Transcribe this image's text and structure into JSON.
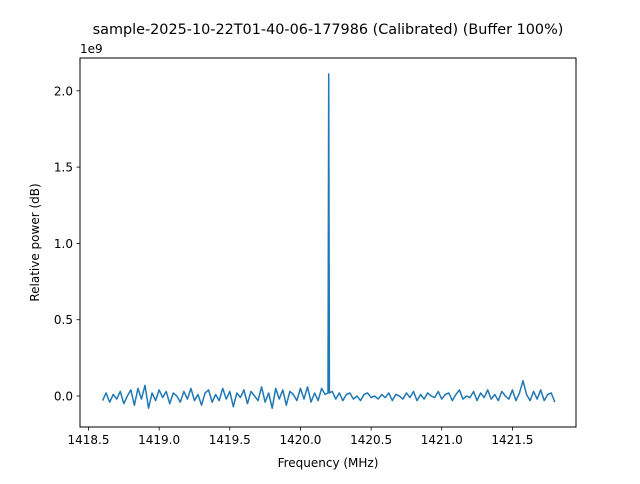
{
  "chart_data": {
    "type": "line",
    "title": "sample-2025-10-22T01-40-06-177986 (Calibrated) (Buffer 100%)",
    "xlabel": "Frequency (MHz)",
    "ylabel": "Relative power (dB)",
    "y_offset_label": "1e9",
    "y_multiplier": 1000000000,
    "xlim": [
      1418.44,
      1421.95
    ],
    "ylim": [
      -0.203,
      2.215
    ],
    "xticks": [
      1418.5,
      1419.0,
      1419.5,
      1420.0,
      1420.5,
      1421.0,
      1421.5
    ],
    "xtick_labels": [
      "1418.5",
      "1419.0",
      "1419.5",
      "1420.0",
      "1420.5",
      "1421.0",
      "1421.5"
    ],
    "yticks": [
      0.0,
      0.5,
      1.0,
      1.5,
      2.0
    ],
    "ytick_labels": [
      "0.0",
      "0.5",
      "1.0",
      "1.5",
      "2.0"
    ],
    "grid": false,
    "line_color": "#1f77b4",
    "series": [
      {
        "x": [
          1418.6,
          1418.625,
          1418.65,
          1418.675,
          1418.7,
          1418.725,
          1418.75,
          1418.775,
          1418.8,
          1418.825,
          1418.85,
          1418.875,
          1418.9,
          1418.925,
          1418.95,
          1418.975,
          1419.0,
          1419.025,
          1419.05,
          1419.075,
          1419.1,
          1419.125,
          1419.15,
          1419.175,
          1419.2,
          1419.225,
          1419.25,
          1419.275,
          1419.3,
          1419.325,
          1419.35,
          1419.375,
          1419.4,
          1419.425,
          1419.45,
          1419.475,
          1419.5,
          1419.525,
          1419.55,
          1419.575,
          1419.6,
          1419.625,
          1419.65,
          1419.675,
          1419.7,
          1419.725,
          1419.75,
          1419.775,
          1419.8,
          1419.825,
          1419.85,
          1419.875,
          1419.9,
          1419.925,
          1419.95,
          1419.975,
          1420.0,
          1420.025,
          1420.05,
          1420.075,
          1420.1,
          1420.125,
          1420.15,
          1420.175,
          1420.195,
          1420.2,
          1420.205,
          1420.225,
          1420.25,
          1420.275,
          1420.3,
          1420.325,
          1420.35,
          1420.375,
          1420.4,
          1420.425,
          1420.45,
          1420.475,
          1420.5,
          1420.525,
          1420.55,
          1420.575,
          1420.6,
          1420.625,
          1420.65,
          1420.675,
          1420.7,
          1420.725,
          1420.75,
          1420.775,
          1420.8,
          1420.825,
          1420.85,
          1420.875,
          1420.9,
          1420.925,
          1420.95,
          1420.975,
          1421.0,
          1421.025,
          1421.05,
          1421.075,
          1421.1,
          1421.125,
          1421.15,
          1421.175,
          1421.2,
          1421.225,
          1421.25,
          1421.275,
          1421.3,
          1421.325,
          1421.35,
          1421.375,
          1421.4,
          1421.425,
          1421.45,
          1421.475,
          1421.5,
          1421.525,
          1421.55,
          1421.575,
          1421.6,
          1421.625,
          1421.65,
          1421.675,
          1421.7,
          1421.725,
          1421.75,
          1421.775,
          1421.8
        ],
        "y": [
          -0.03,
          0.02,
          -0.04,
          0.01,
          -0.02,
          0.03,
          -0.05,
          0.0,
          0.04,
          -0.06,
          0.05,
          -0.02,
          0.07,
          -0.08,
          0.02,
          -0.03,
          0.04,
          -0.01,
          0.03,
          -0.05,
          0.02,
          0.0,
          -0.04,
          0.03,
          -0.02,
          0.05,
          -0.03,
          0.01,
          -0.06,
          0.02,
          0.04,
          -0.04,
          0.01,
          -0.03,
          0.05,
          -0.02,
          0.03,
          -0.07,
          0.02,
          -0.01,
          0.04,
          -0.05,
          0.03,
          0.0,
          -0.03,
          0.06,
          -0.04,
          0.02,
          -0.08,
          0.05,
          -0.02,
          0.04,
          -0.06,
          0.03,
          0.01,
          -0.03,
          0.05,
          -0.02,
          0.06,
          -0.04,
          0.02,
          -0.03,
          0.05,
          0.01,
          0.02,
          2.11,
          0.02,
          0.03,
          -0.02,
          0.02,
          -0.03,
          0.01,
          0.02,
          -0.02,
          0.0,
          -0.03,
          0.01,
          0.02,
          -0.01,
          0.0,
          -0.02,
          0.01,
          -0.01,
          0.02,
          -0.03,
          0.01,
          0.0,
          -0.02,
          0.02,
          -0.01,
          0.03,
          -0.03,
          0.01,
          -0.02,
          0.02,
          0.0,
          -0.01,
          0.03,
          -0.02,
          0.01,
          0.02,
          -0.03,
          0.01,
          0.04,
          -0.02,
          0.0,
          -0.01,
          0.03,
          -0.03,
          0.02,
          -0.01,
          0.04,
          -0.02,
          0.01,
          -0.03,
          0.03,
          0.0,
          -0.02,
          0.04,
          -0.03,
          0.02,
          0.1,
          0.01,
          -0.03,
          0.03,
          -0.02,
          0.04,
          -0.03,
          0.01,
          0.02,
          -0.04
        ]
      }
    ]
  }
}
